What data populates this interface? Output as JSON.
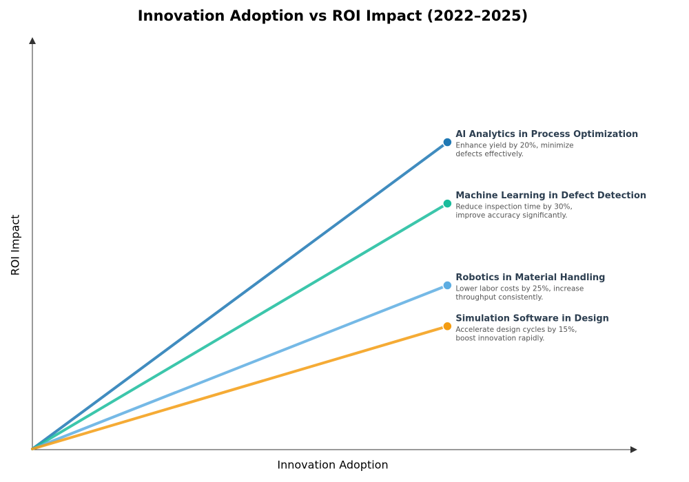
{
  "chart_data": {
    "type": "line",
    "title": "Innovation Adoption vs ROI Impact (2022–2025)",
    "x_label": "Innovation Adoption",
    "y_label": "ROI Impact",
    "xlim": [
      0,
      10
    ],
    "ylim": [
      0,
      10
    ],
    "series": [
      {
        "name": "AI Analytics in Process Optimization",
        "color": "#1f78b4",
        "x": [
          0,
          6.9
        ],
        "values": [
          0,
          7.5
        ],
        "description": [
          "Enhance yield by 20%, minimize",
          "defects effectively."
        ]
      },
      {
        "name": "Machine Learning in Defect Detection",
        "color": "#1abc9c",
        "x": [
          0,
          6.9
        ],
        "values": [
          0,
          6
        ],
        "description": [
          "Reduce inspection time by 30%,",
          "improve accuracy significantly."
        ]
      },
      {
        "name": "Robotics in Material Handling",
        "color": "#5dade2",
        "x": [
          0,
          6.9
        ],
        "values": [
          0,
          4
        ],
        "description": [
          "Lower labor costs by 25%, increase",
          "throughput consistently."
        ]
      },
      {
        "name": "Simulation Software in Design",
        "color": "#f39c12",
        "x": [
          0,
          6.9
        ],
        "values": [
          0,
          3
        ],
        "description": [
          "Accelerate design cycles by 15%,",
          "boost innovation rapidly."
        ]
      }
    ]
  }
}
